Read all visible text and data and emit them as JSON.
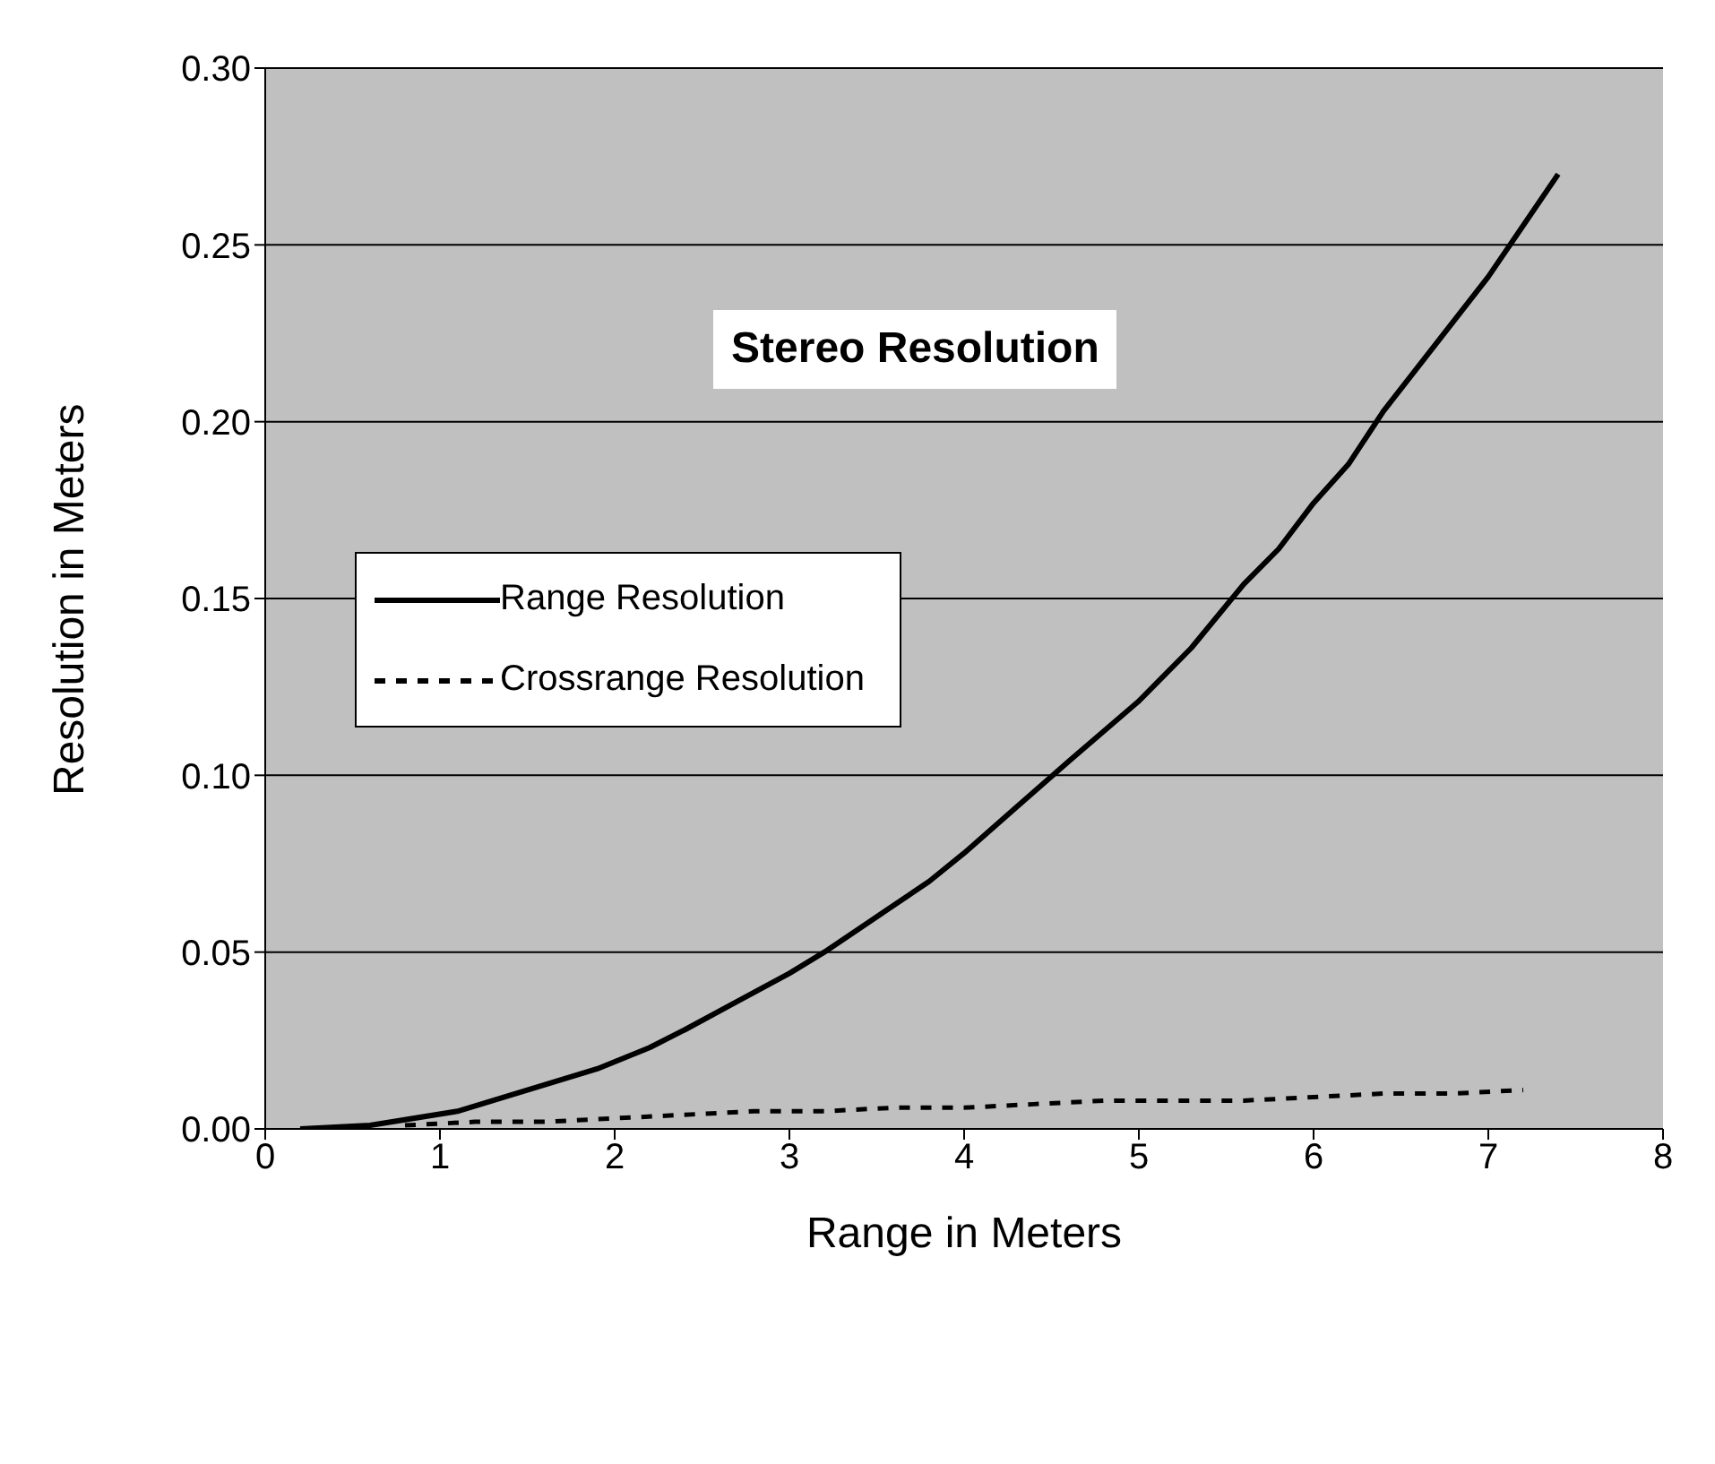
{
  "chart_data": {
    "type": "line",
    "title": "Stereo Resolution",
    "xlabel": "Range in Meters",
    "ylabel": "Resolution  in Meters",
    "xlim": [
      0,
      8
    ],
    "xticks": [
      0,
      1,
      2,
      3,
      4,
      5,
      6,
      7,
      8
    ],
    "ylim": [
      0,
      0.3
    ],
    "yticks": [
      {
        "value": 0,
        "label": "0.00"
      },
      {
        "value": 0.05,
        "label": "0.05"
      },
      {
        "value": 0.1,
        "label": "0.10"
      },
      {
        "value": 0.15,
        "label": "0.15"
      },
      {
        "value": 0.2,
        "label": "0.20"
      },
      {
        "value": 0.25,
        "label": "0.25"
      },
      {
        "value": 0.3,
        "label": "0.30"
      }
    ],
    "grid": "y",
    "legend": "left",
    "marker": "none",
    "series": [
      {
        "name": "Range Resolution",
        "color": "#000000",
        "line_style": "solid",
        "x": [
          0.2,
          0.6,
          1.1,
          1.5,
          1.9,
          2.2,
          2.4,
          2.7,
          3.0,
          3.2,
          3.5,
          3.8,
          4.0,
          4.3,
          4.6,
          5.0,
          5.3,
          5.6,
          5.8,
          6.0,
          6.2,
          6.4,
          6.7,
          7.0,
          7.4
        ],
        "values": [
          0,
          0.001,
          0.005,
          0.011,
          0.017,
          0.023,
          0.028,
          0.036,
          0.044,
          0.05,
          0.06,
          0.07,
          0.078,
          0.091,
          0.104,
          0.121,
          0.136,
          0.154,
          0.164,
          0.177,
          0.188,
          0.203,
          0.222,
          0.241,
          0.27
        ]
      },
      {
        "name": "Crossrange Resolution",
        "color": "#000000",
        "line_style": "dashed",
        "x": [
          0.8,
          1.2,
          1.6,
          2.0,
          2.4,
          2.8,
          3.2,
          3.6,
          4.0,
          4.4,
          4.8,
          5.2,
          5.6,
          6.0,
          6.4,
          6.8,
          7.2
        ],
        "values": [
          0.001,
          0.002,
          0.002,
          0.003,
          0.004,
          0.005,
          0.005,
          0.006,
          0.006,
          0.007,
          0.008,
          0.008,
          0.008,
          0.009,
          0.01,
          0.01,
          0.011
        ]
      }
    ]
  }
}
